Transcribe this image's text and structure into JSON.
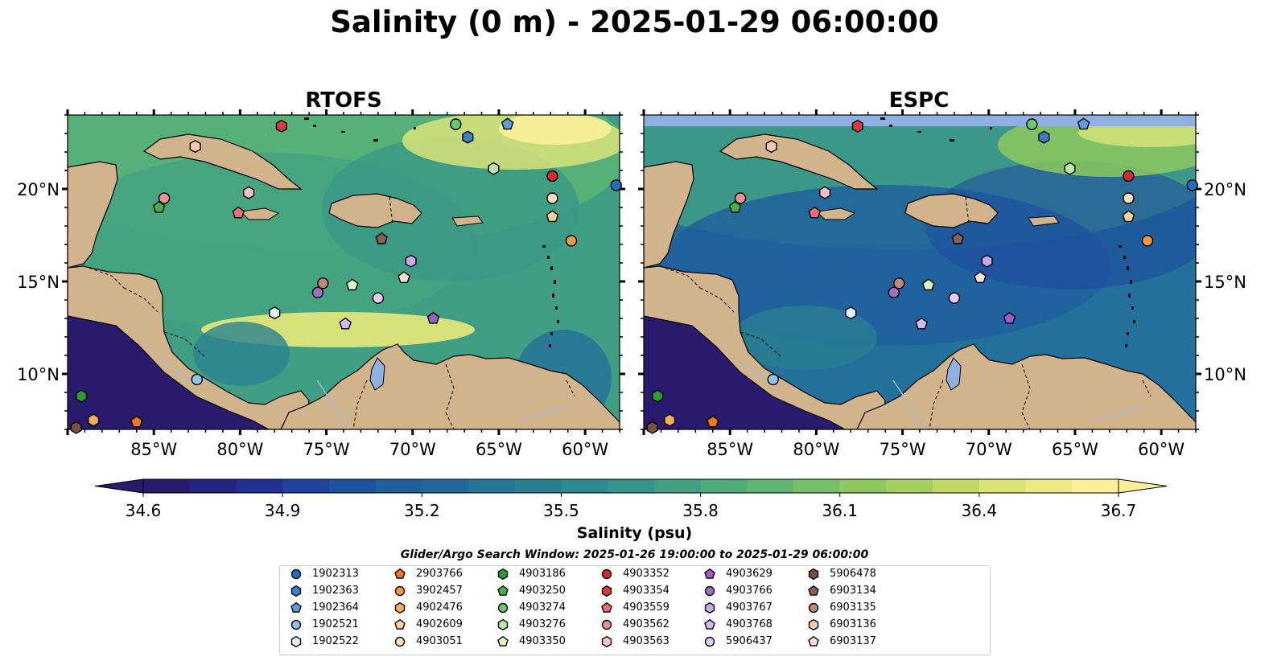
{
  "title": "Salinity (0 m) - 2025-01-29 06:00:00",
  "chart_data": {
    "type": "heatmap",
    "panels": [
      {
        "name": "RTOFS",
        "title": "RTOFS"
      },
      {
        "name": "ESPC",
        "title": "ESPC"
      }
    ],
    "lon_range": [
      -90,
      -58
    ],
    "lat_range": [
      7,
      24
    ],
    "x_ticks": [
      "85°W",
      "80°W",
      "75°W",
      "70°W",
      "65°W",
      "60°W"
    ],
    "x_tick_values": [
      -85,
      -80,
      -75,
      -70,
      -65,
      -60
    ],
    "y_ticks": [
      "10°N",
      "15°N",
      "20°N"
    ],
    "y_tick_values": [
      10,
      15,
      20
    ],
    "colorbar": {
      "label": "Salinity (psu)",
      "min": 34.6,
      "max": 36.7,
      "ticks": [
        "34.6",
        "34.9",
        "35.2",
        "35.5",
        "35.8",
        "36.1",
        "36.4",
        "36.7"
      ],
      "colormap": "summer-blues",
      "colors": [
        "#2a1a6e",
        "#232a8e",
        "#1e48a0",
        "#1f5f9e",
        "#23709a",
        "#2a8290",
        "#35958a",
        "#4aa87d",
        "#66b96e",
        "#8cc85e",
        "#b6d65e",
        "#e4e67a",
        "#fbef98"
      ],
      "extend": "both"
    },
    "search_window": "Glider/Argo Search Window: 2025-01-26 19:00:00 to 2025-01-29 06:00:00",
    "floats": [
      {
        "id": "1902313",
        "marker": "circle",
        "color": "#1f6fbf",
        "lon": -58.2,
        "lat": 20.2
      },
      {
        "id": "1902363",
        "marker": "hexagon",
        "color": "#3c7fc4",
        "lon": -66.8,
        "lat": 22.8
      },
      {
        "id": "1902364",
        "marker": "pentagon",
        "color": "#5aa0dc",
        "lon": -64.5,
        "lat": 23.5
      },
      {
        "id": "1902521",
        "marker": "circle",
        "color": "#8fc4ee",
        "lon": -82.5,
        "lat": 9.7
      },
      {
        "id": "1902522",
        "marker": "hexagon",
        "color": "#dff0fb",
        "lon": -78.0,
        "lat": 13.3
      },
      {
        "id": "2903766",
        "marker": "pentagon",
        "color": "#f07818",
        "lon": -86.0,
        "lat": 7.4
      },
      {
        "id": "3902457",
        "marker": "circle",
        "color": "#f59a3c",
        "lon": -60.8,
        "lat": 17.2
      },
      {
        "id": "4902476",
        "marker": "hexagon",
        "color": "#f7ae58",
        "lon": -88.5,
        "lat": 7.5
      },
      {
        "id": "4902609",
        "marker": "pentagon",
        "color": "#fbd0a0",
        "lon": -61.9,
        "lat": 18.5
      },
      {
        "id": "4903051",
        "marker": "circle",
        "color": "#fde0c0",
        "lon": -61.9,
        "lat": 19.5
      },
      {
        "id": "4903186",
        "marker": "hexagon",
        "color": "#2a9a3a",
        "lon": -89.2,
        "lat": 8.8
      },
      {
        "id": "4903250",
        "marker": "pentagon",
        "color": "#48b048",
        "lon": -84.7,
        "lat": 19.0
      },
      {
        "id": "4903274",
        "marker": "circle",
        "color": "#6cc86c",
        "lon": -67.5,
        "lat": 23.5
      },
      {
        "id": "4903276",
        "marker": "hexagon",
        "color": "#b8e8b0",
        "lon": -65.3,
        "lat": 21.1
      },
      {
        "id": "4903350",
        "marker": "pentagon",
        "color": "#dcf8c8",
        "lon": -73.5,
        "lat": 14.8
      },
      {
        "id": "4903352",
        "marker": "circle",
        "color": "#d62a2a",
        "lon": -61.9,
        "lat": 20.7
      },
      {
        "id": "4903354",
        "marker": "hexagon",
        "color": "#d83a3a",
        "lon": -77.6,
        "lat": 23.4
      },
      {
        "id": "4903559",
        "marker": "pentagon",
        "color": "#ee6e78",
        "lon": -80.1,
        "lat": 18.7
      },
      {
        "id": "4903562",
        "marker": "circle",
        "color": "#f09090",
        "lon": -84.4,
        "lat": 19.5
      },
      {
        "id": "4903563",
        "marker": "hexagon",
        "color": "#f8c0c8",
        "lon": -79.5,
        "lat": 19.8
      },
      {
        "id": "4903629",
        "marker": "pentagon",
        "color": "#9a5ec8",
        "lon": -68.8,
        "lat": 13.0
      },
      {
        "id": "4903766",
        "marker": "circle",
        "color": "#a070c0",
        "lon": -75.5,
        "lat": 14.4
      },
      {
        "id": "4903767",
        "marker": "hexagon",
        "color": "#c8a8e8",
        "lon": -70.1,
        "lat": 16.1
      },
      {
        "id": "4903768",
        "marker": "pentagon",
        "color": "#d4b8f0",
        "lon": -73.9,
        "lat": 12.7
      },
      {
        "id": "5906437",
        "marker": "circle",
        "color": "#e8c8f8",
        "lon": -72.0,
        "lat": 14.1
      },
      {
        "id": "5906478",
        "marker": "hexagon",
        "color": "#7a5040",
        "lon": -89.5,
        "lat": 7.1
      },
      {
        "id": "6903134",
        "marker": "pentagon",
        "color": "#8a5e50",
        "lon": -71.8,
        "lat": 17.3
      },
      {
        "id": "6903135",
        "marker": "circle",
        "color": "#c08878",
        "lon": -75.2,
        "lat": 14.9
      },
      {
        "id": "6903136",
        "marker": "hexagon",
        "color": "#f8c8b0",
        "lon": -82.6,
        "lat": 22.3
      },
      {
        "id": "6903137",
        "marker": "pentagon",
        "color": "#f8e0d0",
        "lon": -70.5,
        "lat": 15.2
      }
    ]
  }
}
